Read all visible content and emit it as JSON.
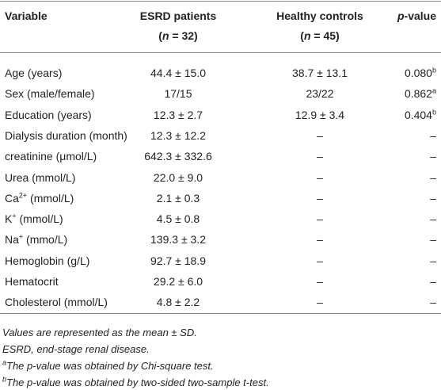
{
  "table": {
    "columns": [
      {
        "title": "Variable"
      },
      {
        "title": "ESRD patients",
        "n": [
          "(",
          {
            "italic": "n"
          },
          " = 32)"
        ]
      },
      {
        "title": "Healthy controls",
        "n": [
          "(",
          {
            "italic": "n"
          },
          " = 45)"
        ]
      },
      {
        "title": [
          {
            "italic": "p"
          },
          "-value"
        ]
      }
    ],
    "rows": [
      [
        "Age (years)",
        "44.4 ± 15.0",
        "38.7 ± 13.1",
        [
          "0.080",
          {
            "sup": "b"
          }
        ]
      ],
      [
        "Sex (male/female)",
        "17/15",
        "23/22",
        [
          "0.862",
          {
            "sup": "a"
          }
        ]
      ],
      [
        "Education (years)",
        "12.3 ± 2.7",
        "12.9 ± 3.4",
        [
          "0.404",
          {
            "sup": "b"
          }
        ]
      ],
      [
        "Dialysis duration (month)",
        "12.3 ± 12.2",
        "–",
        "–"
      ],
      [
        "creatinine (μmol/L)",
        "642.3 ± 332.6",
        "–",
        "–"
      ],
      [
        "Urea (mmol/L)",
        "22.0 ± 9.0",
        "–",
        "–"
      ],
      [
        [
          "Ca",
          {
            "sup": "2+"
          },
          " (mmol/L)"
        ],
        "2.1 ± 0.3",
        "–",
        "–"
      ],
      [
        [
          "K",
          {
            "sup": "+"
          },
          " (mmol/L)"
        ],
        "4.5 ± 0.8",
        "–",
        "–"
      ],
      [
        [
          "Na",
          {
            "sup": "+"
          },
          " (mmo/L)"
        ],
        "139.3 ± 3.2",
        "–",
        "–"
      ],
      [
        "Hemoglobin (g/L)",
        "92.7 ± 18.9",
        "–",
        "–"
      ],
      [
        "Hematocrit",
        "29.2 ± 6.0",
        "–",
        "–"
      ],
      [
        "Cholesterol (mmol/L)",
        "4.8 ± 2.2",
        "–",
        "–"
      ]
    ]
  },
  "footnotes": [
    [
      "Values are represented as the mean ± SD."
    ],
    [
      "ESRD, end-stage renal disease."
    ],
    [
      {
        "sup": "a"
      },
      "The p-value was obtained by Chi-square test."
    ],
    [
      {
        "sup": "b"
      },
      "The p-value was obtained by two-sided two-sample t-test."
    ]
  ]
}
